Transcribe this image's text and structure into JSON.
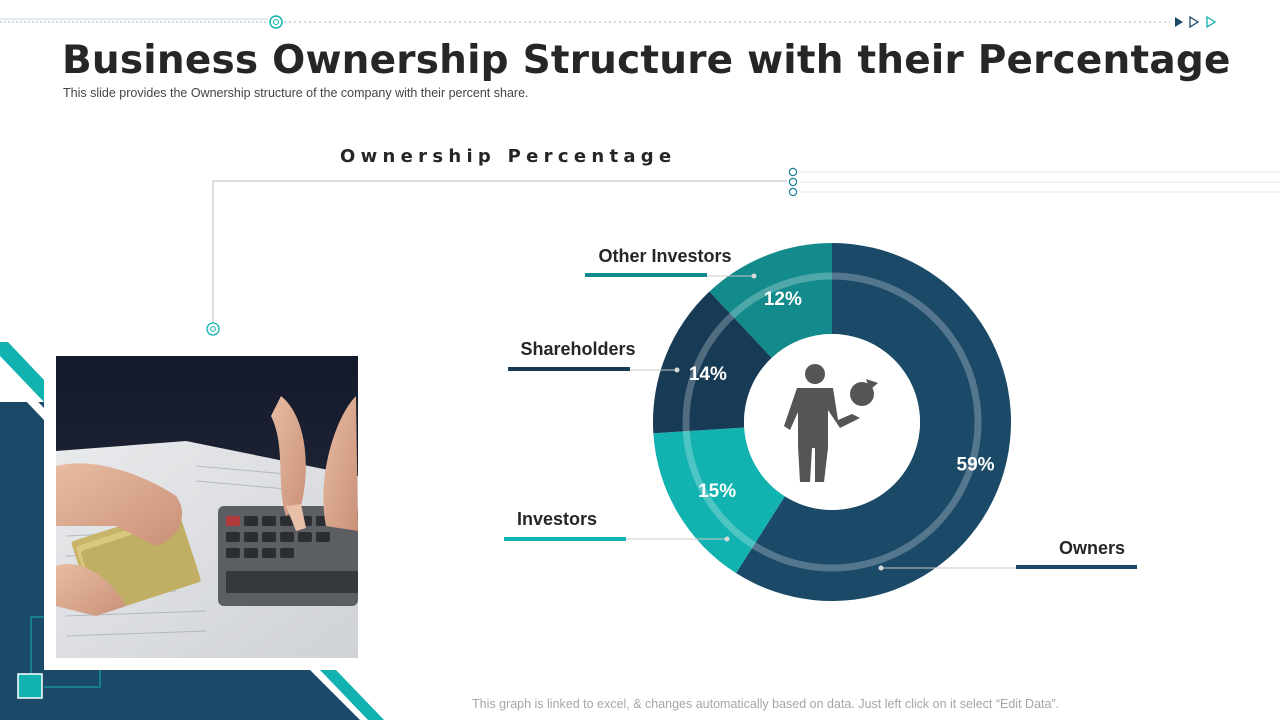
{
  "header": {
    "title": "Business Ownership Structure with their Percentage",
    "subtitle": "This slide provides  the Ownership structure of the company with their percent share."
  },
  "chart_data": {
    "type": "pie",
    "title": "Ownership Percentage",
    "categories": [
      "Owners",
      "Investors",
      "Shareholders",
      "Other Investors"
    ],
    "values": [
      59,
      15,
      14,
      12
    ],
    "value_labels": [
      "59%",
      "15%",
      "14%",
      "12%"
    ],
    "colors": [
      "#1b4a68",
      "#12b2b0",
      "#173a55",
      "#138a8b"
    ],
    "label_line_colors": [
      "#1b4a68",
      "#12b2b0",
      "#173a55",
      "#138a8b"
    ]
  },
  "center_icon": "businessman-with-pie-chart-icon",
  "image": {
    "icon": "money-and-calculator-photo"
  },
  "footer": {
    "note": "This graph is linked to excel,  & changes automatically based on data. Just left click on it select “Edit Data”."
  },
  "colors": {
    "accent": "#12b2b0",
    "dark": "#1b4a68"
  }
}
